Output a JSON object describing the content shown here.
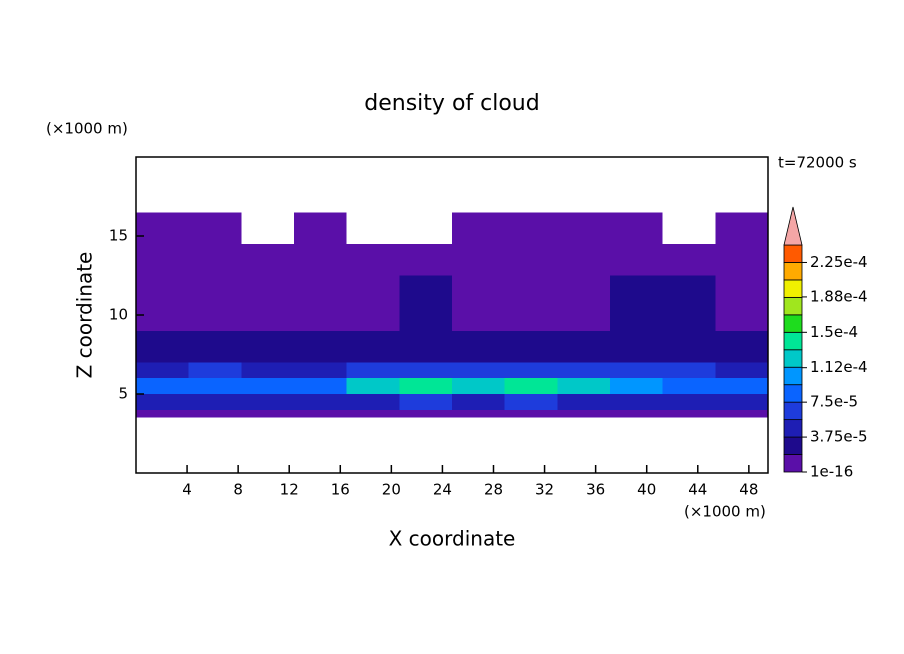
{
  "chart_data": {
    "type": "heatmap",
    "title": "density of cloud",
    "subtitle": "t=72000 s",
    "x_label": "X coordinate",
    "y_label": "Z coordinate",
    "x_unit": "(×1000 m)",
    "y_unit": "(×1000 m)",
    "xlim": [
      0,
      49.5
    ],
    "ylim": [
      0,
      20
    ],
    "xticks": [
      4,
      8,
      12,
      16,
      20,
      24,
      28,
      32,
      36,
      40,
      44,
      48
    ],
    "yticks": [
      5,
      10,
      15
    ],
    "xbins": [
      0,
      4.125,
      8.25,
      12.375,
      16.5,
      20.625,
      24.75,
      28.875,
      33,
      37.125,
      41.25,
      45.375,
      49.5
    ],
    "ybins": [
      3.5,
      4,
      5,
      6,
      7,
      9,
      12.5,
      14.5,
      16.5
    ],
    "z": [
      [
        5e-06,
        5e-06,
        5e-06,
        5e-06,
        5e-06,
        5e-06,
        5e-06,
        5e-06,
        5e-06,
        5e-06,
        5e-06,
        5e-06
      ],
      [
        4e-05,
        4.5e-05,
        4e-05,
        4.5e-05,
        5e-05,
        6e-05,
        5.5e-05,
        6e-05,
        5e-05,
        4.5e-05,
        4.5e-05,
        4e-05
      ],
      [
        8e-05,
        9e-05,
        8.5e-05,
        9e-05,
        0.00012,
        0.000135,
        0.00013,
        0.00014,
        0.00012,
        0.0001,
        9e-05,
        8e-05
      ],
      [
        5e-05,
        6e-05,
        5.5e-05,
        5e-05,
        6e-05,
        6.5e-05,
        6e-05,
        6.5e-05,
        6e-05,
        7e-05,
        6e-05,
        5.5e-05
      ],
      [
        2.5e-05,
        2e-05,
        2.5e-05,
        3e-05,
        2.5e-05,
        3e-05,
        2.5e-05,
        2e-05,
        2.5e-05,
        3e-05,
        2.5e-05,
        2e-05
      ],
      [
        1e-05,
        1.2e-05,
        1e-05,
        1e-05,
        1e-05,
        2e-05,
        1e-05,
        1e-05,
        1e-05,
        2e-05,
        2e-05,
        1e-05
      ],
      [
        5e-06,
        5e-06,
        5e-06,
        5e-06,
        5e-06,
        5e-06,
        5e-06,
        5e-06,
        5e-06,
        5e-06,
        5e-06,
        5e-06
      ],
      [
        5e-06,
        5e-06,
        null,
        5e-06,
        null,
        null,
        5e-06,
        5e-06,
        5e-06,
        5e-06,
        null,
        5e-06
      ]
    ],
    "colorbar": {
      "levels": [
        1e-16,
        1.875e-05,
        3.75e-05,
        5.625e-05,
        7.5e-05,
        9.375e-05,
        0.0001125,
        0.00013125,
        0.00015,
        0.00016875,
        0.0001875,
        0.00020625,
        0.000225,
        0.00024375
      ],
      "colors": [
        "#5a0fa8",
        "#1e0a8c",
        "#1e1eb4",
        "#1e3cdc",
        "#0a64ff",
        "#0096ff",
        "#00c8c8",
        "#00e696",
        "#1edc1e",
        "#a0e61e",
        "#f0f000",
        "#ffaa00",
        "#ff5a00"
      ],
      "over_color": "#f4a6a6",
      "ticks": [
        1e-16,
        {
          "value": 3.75e-05,
          "label": "3.75e-5"
        },
        {
          "value": 7.5e-05,
          "label": "7.5e-5"
        },
        {
          "value": 0.000112,
          "label": "1.12e-4"
        },
        {
          "value": 0.00015,
          "label": "1.5e-4"
        },
        {
          "value": 0.000188,
          "label": "1.88e-4"
        },
        {
          "value": 0.000225,
          "label": "2.25e-4"
        }
      ]
    }
  }
}
